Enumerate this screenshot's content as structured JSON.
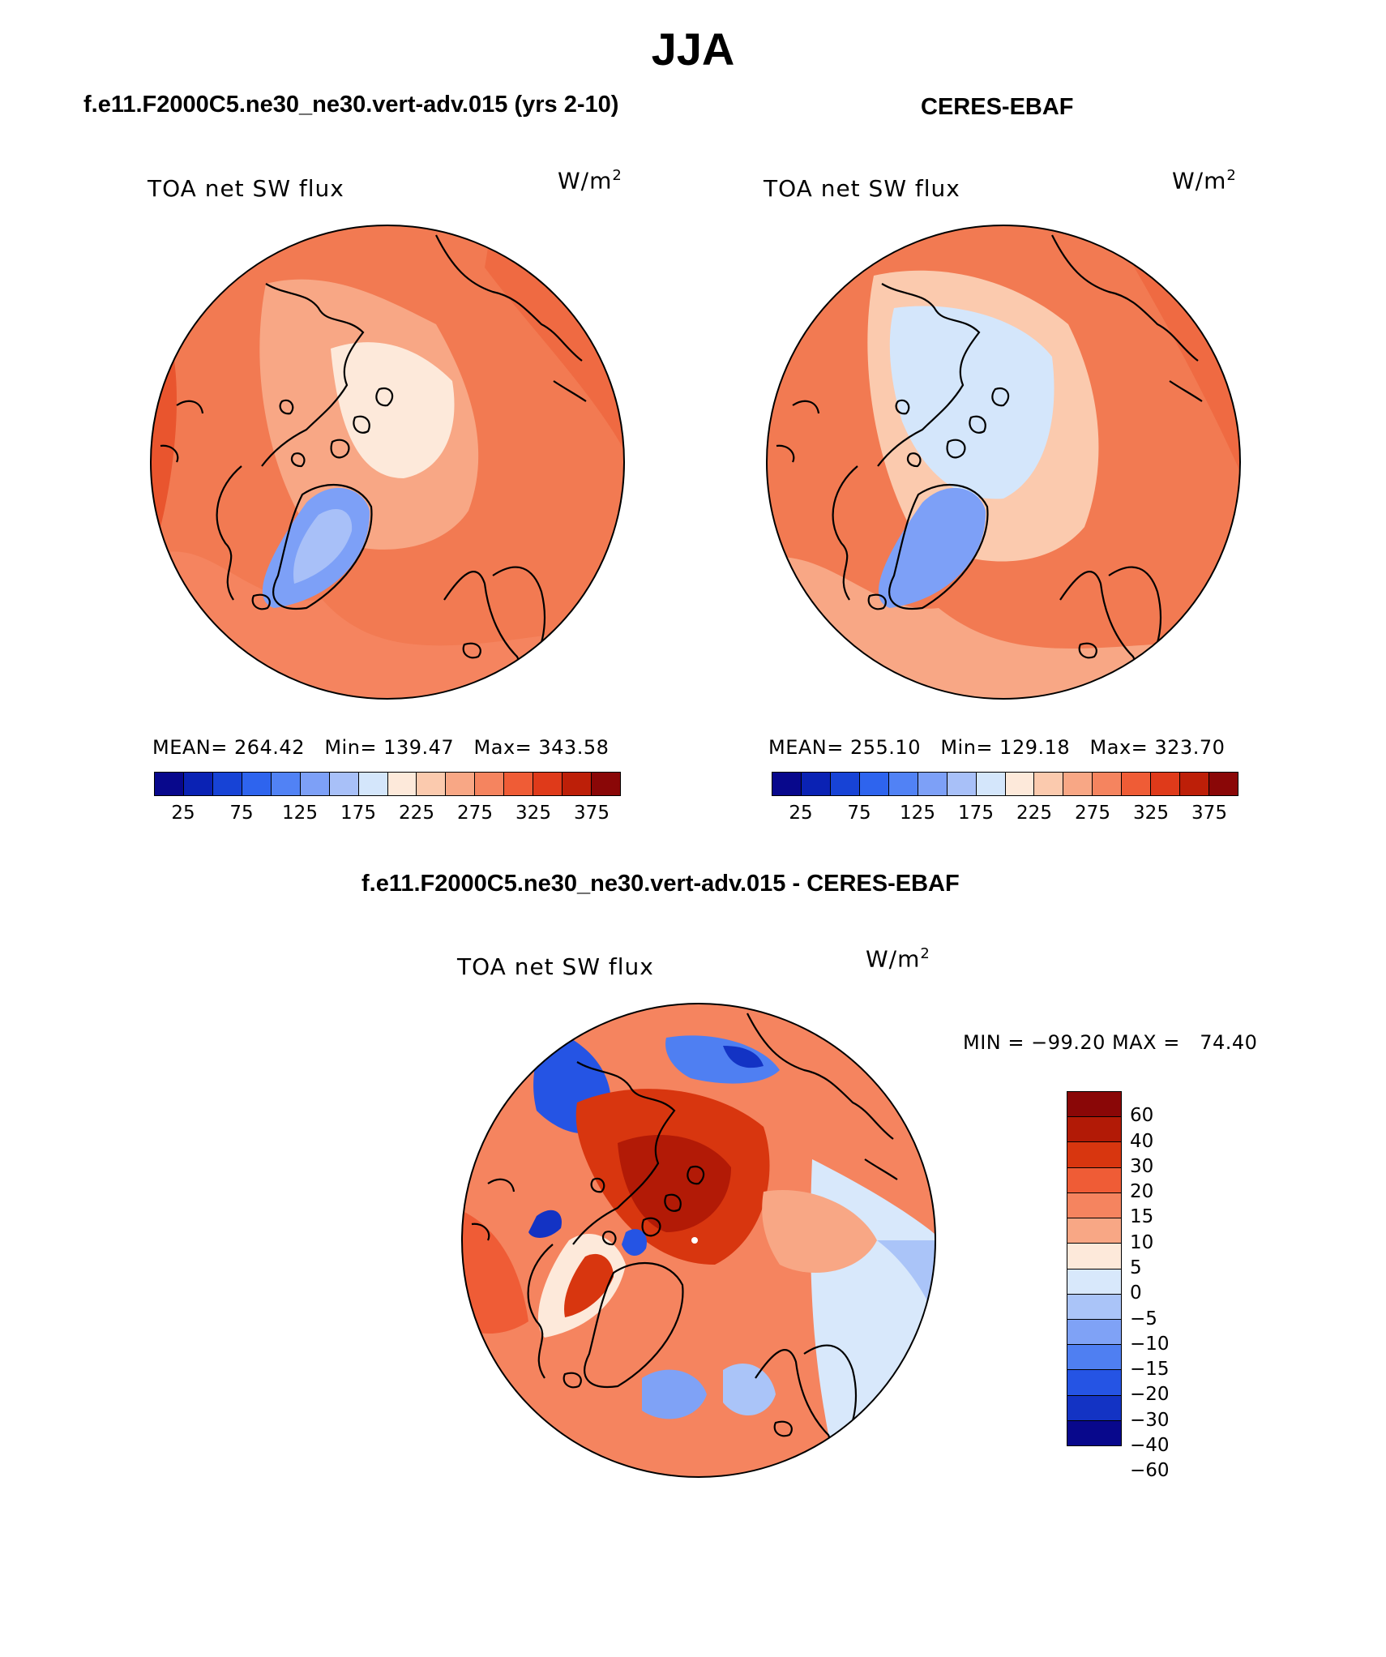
{
  "figure": {
    "season": "JJA",
    "left_title": "f.e11.F2000C5.ne30_ne30.vert-adv.015 (yrs 2-10)",
    "right_title": "CERES-EBAF",
    "diff_title": "f.e11.F2000C5.ne30_ne30.vert-adv.015 - CERES-EBAF"
  },
  "panels": {
    "model": {
      "variable": "TOA net SW flux",
      "units": "W/m",
      "units_sup": "2",
      "stats": "MEAN= 264.42   Min= 139.47   Max= 343.58"
    },
    "obs": {
      "variable": "TOA net SW flux",
      "units": "W/m",
      "units_sup": "2",
      "stats": "MEAN= 255.10   Min= 129.18   Max= 323.70"
    },
    "diff": {
      "variable": "TOA net SW flux",
      "units": "W/m",
      "units_sup": "2",
      "stats": "MIN = −99.20 MAX =   74.40"
    }
  },
  "colorbars": {
    "abs": {
      "colors": [
        "#08088c",
        "#0a22b4",
        "#1743d6",
        "#2e64ee",
        "#5182f5",
        "#7da0f7",
        "#a8c0f8",
        "#d4e6fb",
        "#fde9da",
        "#fbcaae",
        "#f8a785",
        "#f5845f",
        "#ef5c36",
        "#df3a1a",
        "#bd1f08",
        "#8a0707"
      ],
      "labels": [
        "25",
        "75",
        "125",
        "175",
        "225",
        "275",
        "325",
        "375"
      ]
    },
    "diff": {
      "colors": [
        "#8a0707",
        "#b21a06",
        "#d8360f",
        "#ef5c36",
        "#f5845f",
        "#f8a785",
        "#fde9da",
        "#d8e8fb",
        "#aac4f8",
        "#7fa2f6",
        "#4f7ff2",
        "#2554e4",
        "#1333c4",
        "#08088c"
      ],
      "labels": [
        "60",
        "40",
        "30",
        "20",
        "15",
        "10",
        "5",
        "0",
        "−5",
        "−10",
        "−15",
        "−20",
        "−30",
        "−40",
        "−60"
      ]
    }
  }
}
